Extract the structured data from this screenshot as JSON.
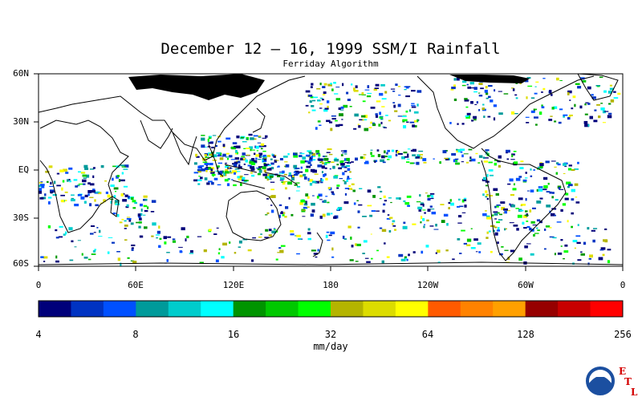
{
  "title": "December 12 – 16, 1999 SSM/I Rainfall",
  "subtitle": "Ferriday Algorithm",
  "map": {
    "lat_labels": [
      "60N",
      "30N",
      "EQ",
      "30S",
      "60S"
    ],
    "lon_labels": [
      "0",
      "60E",
      "120E",
      "180",
      "120W",
      "60W",
      "0"
    ]
  },
  "colorbar": {
    "colors": [
      "#00007a",
      "#0033c2",
      "#0050ff",
      "#009a9a",
      "#00cccc",
      "#00ffff",
      "#009400",
      "#00c800",
      "#00ff00",
      "#b4b400",
      "#dcdc00",
      "#ffff00",
      "#ff5a00",
      "#ff8200",
      "#ffa000",
      "#960000",
      "#c80000",
      "#ff0000"
    ],
    "tick_labels": [
      "4",
      "8",
      "16",
      "32",
      "64",
      "128",
      "256"
    ],
    "units": "mm/day"
  },
  "logo": {
    "name": "NOAA",
    "letters": [
      "E",
      "T",
      "L"
    ]
  }
}
